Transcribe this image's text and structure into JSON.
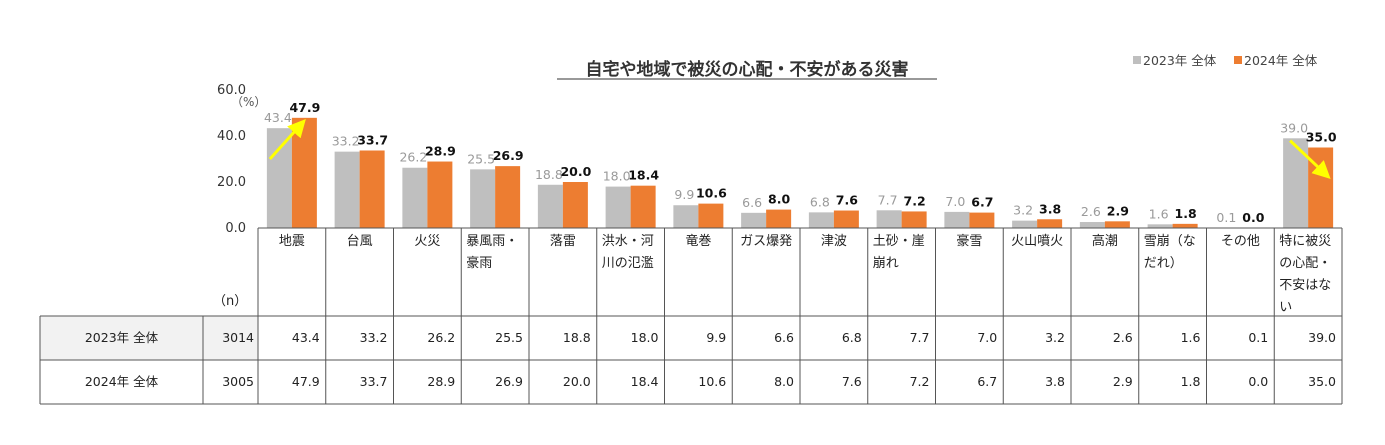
{
  "chart_data": {
    "type": "bar",
    "title": "自宅や地域で被災の心配・不安がある災害",
    "unit_label": "（%）",
    "n_label": "（n）",
    "ylim": [
      0,
      60
    ],
    "yticks": [
      "60.0",
      "40.0",
      "20.0",
      "0.0"
    ],
    "legend_position": "top-right",
    "categories": [
      [
        "地震"
      ],
      [
        "台風"
      ],
      [
        "火災"
      ],
      [
        "暴風雨・",
        "豪雨"
      ],
      [
        "落雷"
      ],
      [
        "洪水・河",
        "川の氾濫"
      ],
      [
        "竜巻"
      ],
      [
        "ガス爆発"
      ],
      [
        "津波"
      ],
      [
        "土砂・崖",
        "崩れ"
      ],
      [
        "豪雪"
      ],
      [
        "火山噴火"
      ],
      [
        "高潮"
      ],
      [
        "雪崩（な",
        "だれ）"
      ],
      [
        "その他"
      ],
      [
        "特に被災",
        "の心配・",
        "不安はな",
        "い"
      ]
    ],
    "series": [
      {
        "name": "2023年 全体",
        "color": "#bfbfbf",
        "n": "3014",
        "values": [
          43.4,
          33.2,
          26.2,
          25.5,
          18.8,
          18.0,
          9.9,
          6.6,
          6.8,
          7.7,
          7.0,
          3.2,
          2.6,
          1.6,
          0.1,
          39.0
        ],
        "labels": [
          "43.4",
          "33.2",
          "26.2",
          "25.5",
          "18.8",
          "18.0",
          "9.9",
          "6.6",
          "6.8",
          "7.7",
          "7.0",
          "3.2",
          "2.6",
          "1.6",
          "0.1",
          "39.0"
        ]
      },
      {
        "name": "2024年 全体",
        "color": "#ed7d31",
        "n": "3005",
        "values": [
          47.9,
          33.7,
          28.9,
          26.9,
          20.0,
          18.4,
          10.6,
          8.0,
          7.6,
          7.2,
          6.7,
          3.8,
          2.9,
          1.8,
          0.0,
          35.0
        ],
        "labels": [
          "47.9",
          "33.7",
          "28.9",
          "26.9",
          "20.0",
          "18.4",
          "10.6",
          "8.0",
          "7.6",
          "7.2",
          "6.7",
          "3.8",
          "2.9",
          "1.8",
          "0.0",
          "35.0"
        ]
      }
    ],
    "annotations": [
      {
        "type": "arrow",
        "category_index": 0,
        "direction": "up",
        "color": "#ffff00"
      },
      {
        "type": "arrow",
        "category_index": 15,
        "direction": "down",
        "color": "#ffff00"
      }
    ]
  }
}
